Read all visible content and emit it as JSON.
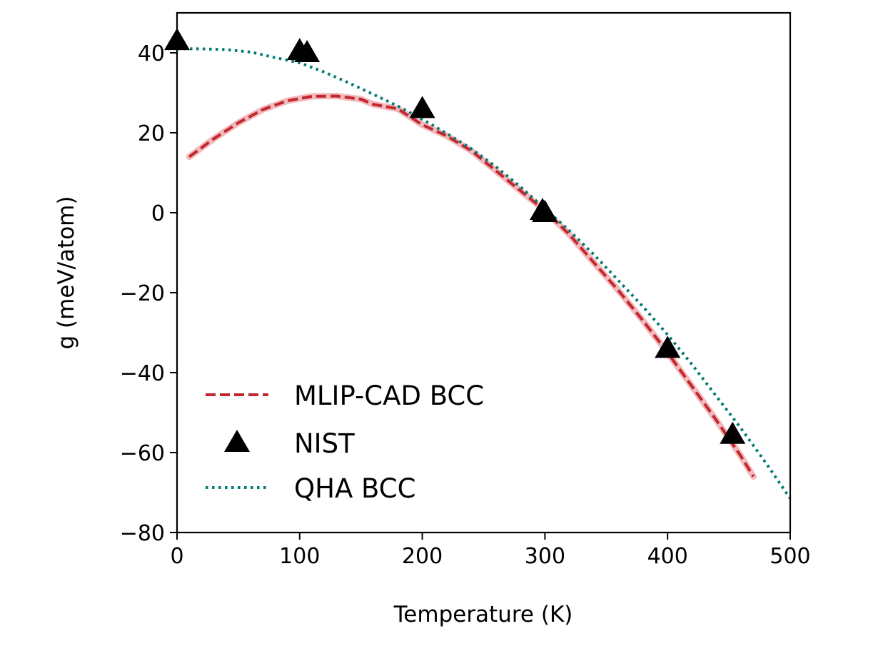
{
  "chart_data": {
    "type": "line",
    "title": "",
    "xlabel": "Temperature (K)",
    "ylabel": "g (meV/atom)",
    "xlim": [
      0,
      500
    ],
    "ylim": [
      -80,
      50
    ],
    "xticks": [
      0,
      100,
      200,
      300,
      400,
      500
    ],
    "yticks": [
      -80,
      -60,
      -40,
      -20,
      0,
      20,
      40
    ],
    "grid": false,
    "legend_position": "lower-left",
    "series": [
      {
        "name": "MLIP-CAD BCC",
        "style": "dashed",
        "color": "#c1272d",
        "band_color": "#f2b9bd",
        "x": [
          10,
          30,
          50,
          70,
          90,
          110,
          130,
          150,
          160,
          180,
          200,
          220,
          240,
          260,
          280,
          300,
          320,
          340,
          360,
          380,
          400,
          420,
          440,
          460,
          470
        ],
        "y": [
          14,
          18.5,
          22.5,
          25.8,
          28,
          29.1,
          29.2,
          28.4,
          27.1,
          26,
          22,
          19.2,
          15.5,
          10.5,
          5.5,
          0.5,
          -5.5,
          -12.5,
          -19.5,
          -27,
          -35,
          -43.5,
          -52,
          -61,
          -66
        ]
      },
      {
        "name": "NIST",
        "style": "triangle-markers",
        "color": "#000000",
        "x": [
          0,
          100,
          106,
          200,
          298,
          300,
          400,
          453
        ],
        "y": [
          43,
          40.5,
          40,
          26,
          0.5,
          0,
          -34,
          -55.5
        ]
      },
      {
        "name": "QHA BCC",
        "style": "dotted",
        "color": "#007a73",
        "x": [
          0,
          20,
          40,
          60,
          80,
          100,
          120,
          140,
          160,
          180,
          200,
          220,
          240,
          260,
          280,
          300,
          320,
          340,
          360,
          380,
          400,
          420,
          440,
          460,
          480,
          500
        ],
        "y": [
          41,
          41,
          40.8,
          40.2,
          38.8,
          37.5,
          35.2,
          32.5,
          29.6,
          26.7,
          23.4,
          19.8,
          16,
          11.5,
          6.5,
          1,
          -4.5,
          -10.5,
          -17,
          -23.5,
          -30.5,
          -38,
          -46,
          -54,
          -62.5,
          -71.5
        ]
      }
    ]
  }
}
